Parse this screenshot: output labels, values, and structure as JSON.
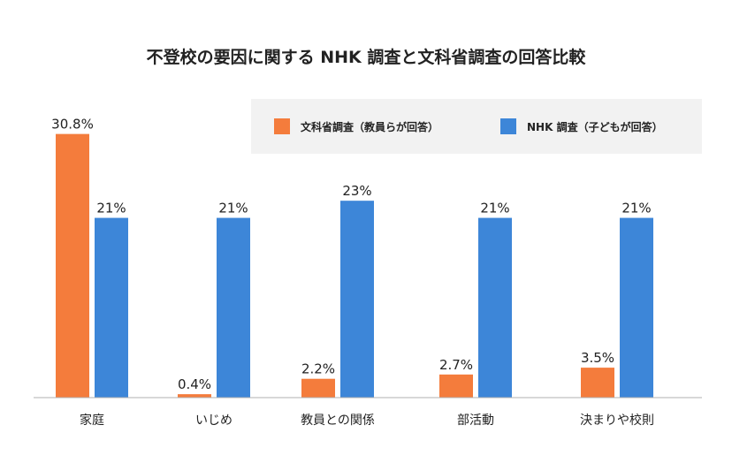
{
  "chart_data": {
    "type": "bar",
    "title": "不登校の要因に関する NHK 調査と文科省調査の回答比較",
    "categories": [
      "家庭",
      "いじめ",
      "教員との関係",
      "部活動",
      "決まりや校則"
    ],
    "series": [
      {
        "name": "文科省調査（教員らが回答）",
        "color": "#f47c3c",
        "values": [
          30.8,
          0.4,
          2.2,
          2.7,
          3.5
        ],
        "labels": [
          "30.8%",
          "0.4%",
          "2.2%",
          "2.7%",
          "3.5%"
        ]
      },
      {
        "name": "NHK 調査（子どもが回答）",
        "color": "#3d86d8",
        "values": [
          21,
          21,
          23,
          21,
          21
        ],
        "labels": [
          "21%",
          "21%",
          "23%",
          "21%",
          "21%"
        ]
      }
    ],
    "xlabel": "",
    "ylabel": "",
    "ylim": [
      0,
      32
    ],
    "grid": false,
    "legend_position": "top-right"
  }
}
